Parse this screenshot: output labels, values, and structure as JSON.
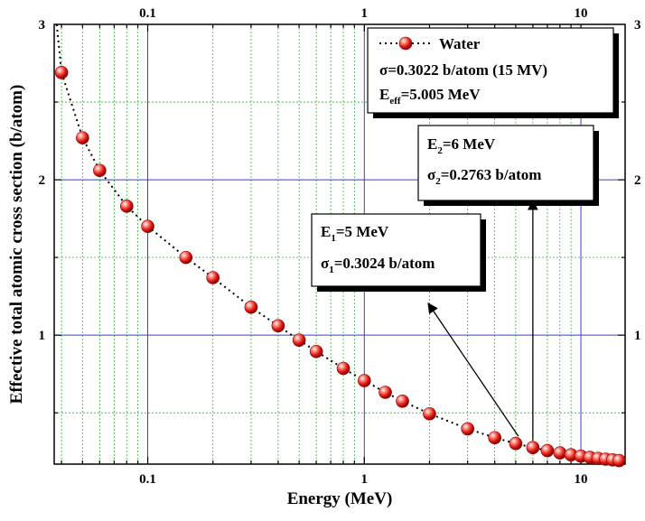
{
  "chart_data": {
    "type": "scatter",
    "xscale": "log",
    "xlabel": "Energy (MeV)",
    "ylabel": "Effective total atomic cross section (b/atom)",
    "xlim": [
      0.037,
      16
    ],
    "ylim": [
      0.17,
      3
    ],
    "x_ticks": [
      {
        "value": 0.1,
        "label": "0.1"
      },
      {
        "value": 1,
        "label": "1"
      },
      {
        "value": 10,
        "label": "10"
      }
    ],
    "y_ticks": [
      {
        "value": 1,
        "label": "1"
      },
      {
        "value": 2,
        "label": "2"
      },
      {
        "value": 3,
        "label": "3"
      }
    ],
    "grid": true,
    "legend": {
      "position": "top-right",
      "label": "Water"
    },
    "series": [
      {
        "name": "Water",
        "marker": "sphere",
        "color": "#e8231e",
        "points": [
          [
            0.04,
            2.69
          ],
          [
            0.05,
            2.27
          ],
          [
            0.06,
            2.06
          ],
          [
            0.08,
            1.83
          ],
          [
            0.1,
            1.7
          ],
          [
            0.15,
            1.5
          ],
          [
            0.2,
            1.37
          ],
          [
            0.3,
            1.18
          ],
          [
            0.4,
            1.06
          ],
          [
            0.5,
            0.968
          ],
          [
            0.6,
            0.895
          ],
          [
            0.8,
            0.786
          ],
          [
            1.0,
            0.707
          ],
          [
            1.25,
            0.632
          ],
          [
            1.5,
            0.575
          ],
          [
            2.0,
            0.494
          ],
          [
            3.0,
            0.397
          ],
          [
            4.0,
            0.34
          ],
          [
            5.0,
            0.3024
          ],
          [
            6.0,
            0.2763
          ],
          [
            7.0,
            0.257
          ],
          [
            8.0,
            0.242
          ],
          [
            9.0,
            0.23
          ],
          [
            10.0,
            0.221
          ],
          [
            11.0,
            0.213
          ],
          [
            12.0,
            0.207
          ],
          [
            13.0,
            0.202
          ],
          [
            14.0,
            0.197
          ],
          [
            15.0,
            0.193
          ]
        ]
      }
    ],
    "fit_line_start": [
      0.038,
      3.0
    ],
    "annotations": {
      "legend_box": {
        "sigma_text": "σ=0.3022 b/atom (15 MV)",
        "eeff_main": "E",
        "eeff_sub": "eff",
        "eeff_rest": "=5.005 MeV"
      },
      "box1": {
        "e_main": "E",
        "e_sub": "1",
        "e_rest": "=5 MeV",
        "s_main": "σ",
        "s_sub": "1",
        "s_rest": "=0.3024 b/atom",
        "arrow_from": [
          5.0,
          0.3024
        ]
      },
      "box2": {
        "e_main": "E",
        "e_sub": "2",
        "e_rest": "=6 MeV",
        "s_main": "σ",
        "s_sub": "2",
        "s_rest": "=0.2763 b/atom",
        "arrow_from": [
          6.0,
          0.2763
        ]
      }
    }
  }
}
